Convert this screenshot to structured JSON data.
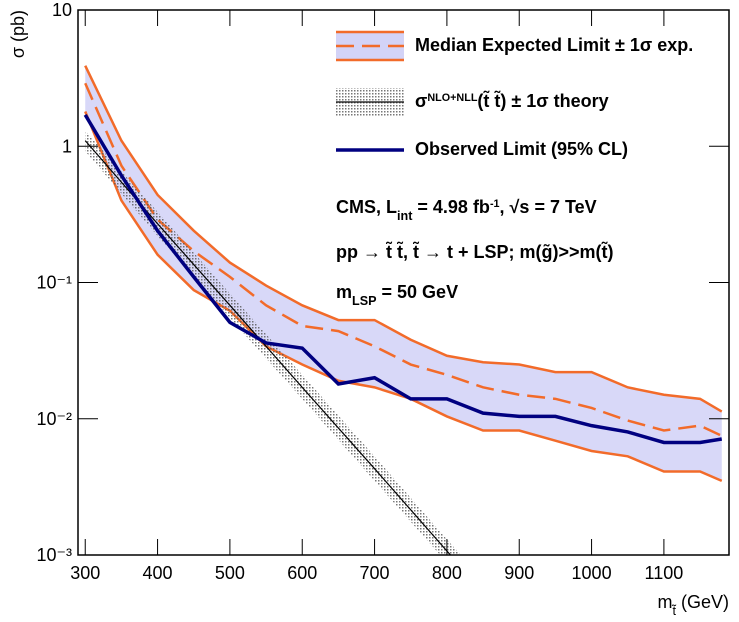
{
  "chart_data": {
    "type": "line",
    "y_label": [
      {
        "text": "σ (pb)"
      }
    ],
    "x_label": [
      {
        "text": "m"
      },
      {
        "text": "t̃",
        "sub": true
      },
      {
        "text": " (GeV)"
      }
    ],
    "xlim": [
      290,
      1190
    ],
    "xticks": [
      300,
      400,
      500,
      600,
      700,
      800,
      900,
      1000,
      1100
    ],
    "ylim": [
      0.001,
      10
    ],
    "log_y": true,
    "yticks": [
      {
        "value": 0.001,
        "label": "10⁻³"
      },
      {
        "value": 0.01,
        "label": "10⁻²"
      },
      {
        "value": 0.1,
        "label": "10⁻¹"
      },
      1,
      10
    ],
    "x": [
      300,
      350,
      400,
      450,
      500,
      550,
      600,
      650,
      700,
      750,
      800,
      850,
      900,
      950,
      1000,
      1050,
      1100,
      1150,
      1180
    ],
    "series": [
      {
        "name": [
          {
            "text": "Median Expected Limit ± 1σ exp."
          }
        ],
        "color": "#f26b2a",
        "band_color": "#c8c8f5",
        "dashed": true,
        "values": [
          2.9,
          0.72,
          0.29,
          0.17,
          0.11,
          0.068,
          0.048,
          0.044,
          0.034,
          0.025,
          0.021,
          0.017,
          0.015,
          0.014,
          0.012,
          0.0097,
          0.0082,
          0.0089,
          0.0075
        ],
        "upper": [
          3.9,
          1.1,
          0.44,
          0.24,
          0.14,
          0.095,
          0.068,
          0.053,
          0.053,
          0.038,
          0.029,
          0.026,
          0.025,
          0.022,
          0.022,
          0.017,
          0.015,
          0.014,
          0.0113
        ],
        "lower": [
          1.8,
          0.4,
          0.16,
          0.088,
          0.062,
          0.034,
          0.025,
          0.019,
          0.017,
          0.014,
          0.0104,
          0.0082,
          0.0082,
          0.0069,
          0.0058,
          0.0053,
          0.0041,
          0.0041,
          0.0035
        ]
      },
      {
        "name": [
          {
            "text": "σ"
          },
          {
            "text": "NLO+NLL",
            "sup": true
          },
          {
            "text": "(t̃ t̃) ± 1σ theory"
          }
        ],
        "color": "#000000",
        "band_color": "#9a9a9a",
        "dashed": false,
        "x": [
          300,
          400,
          500,
          600,
          700,
          800,
          850
        ],
        "values": [
          1.1,
          0.27,
          0.068,
          0.017,
          0.0043,
          0.00107,
          0.00054
        ],
        "upper": [
          1.3,
          0.33,
          0.083,
          0.021,
          0.0053,
          0.0013,
          0.00066
        ],
        "lower": [
          0.92,
          0.22,
          0.055,
          0.014,
          0.0035,
          0.00088,
          0.00044
        ]
      },
      {
        "name": [
          {
            "text": "Observed Limit (95% CL)"
          }
        ],
        "color": "#000080",
        "dashed": false,
        "values": [
          1.7,
          0.61,
          0.24,
          0.11,
          0.051,
          0.036,
          0.033,
          0.018,
          0.02,
          0.014,
          0.014,
          0.011,
          0.0104,
          0.0104,
          0.0089,
          0.008,
          0.0067,
          0.0067,
          0.0071
        ]
      }
    ],
    "annotations": [
      [
        {
          "text": "CMS, L"
        },
        {
          "text": "int",
          "sub": true
        },
        {
          "text": " = 4.98 fb"
        },
        {
          "text": "-1",
          "sup": true
        },
        {
          "text": ", √s = 7 TeV"
        }
      ],
      [
        {
          "text": "pp → t̃ t̃,  t̃ → t + LSP; m(g̃)>>m(t̃)"
        }
      ],
      [
        {
          "text": "m"
        },
        {
          "text": "LSP",
          "sub": true
        },
        {
          "text": " = 50 GeV"
        }
      ]
    ]
  }
}
